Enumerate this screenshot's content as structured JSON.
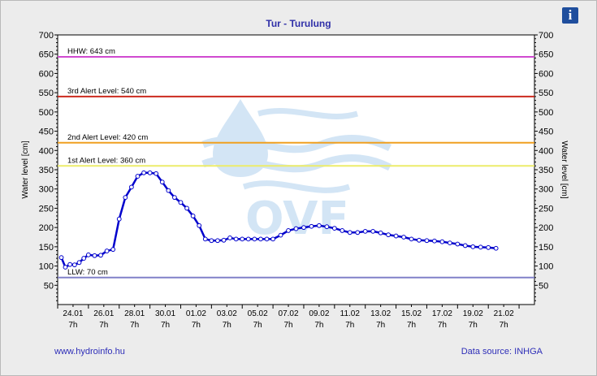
{
  "chart_data": {
    "type": "line",
    "title": "Tur - Turulung",
    "ylabel": "Water level [cm]",
    "ylabel_right": "Water level [cm]",
    "ylim": [
      0,
      700
    ],
    "yticks": [
      50,
      100,
      150,
      200,
      250,
      300,
      350,
      400,
      450,
      500,
      550,
      600,
      650,
      700
    ],
    "xlim": [
      0,
      15.5
    ],
    "x_ticks": [
      {
        "x": 0.5,
        "date": "24.01",
        "time": "7h"
      },
      {
        "x": 1.5,
        "date": "26.01",
        "time": "7h"
      },
      {
        "x": 2.5,
        "date": "28.01",
        "time": "7h"
      },
      {
        "x": 3.5,
        "date": "30.01",
        "time": "7h"
      },
      {
        "x": 4.5,
        "date": "01.02",
        "time": "7h"
      },
      {
        "x": 5.5,
        "date": "03.02",
        "time": "7h"
      },
      {
        "x": 6.5,
        "date": "05.02",
        "time": "7h"
      },
      {
        "x": 7.5,
        "date": "07.02",
        "time": "7h"
      },
      {
        "x": 8.5,
        "date": "09.02",
        "time": "7h"
      },
      {
        "x": 9.5,
        "date": "11.02",
        "time": "7h"
      },
      {
        "x": 10.5,
        "date": "13.02",
        "time": "7h"
      },
      {
        "x": 11.5,
        "date": "15.02",
        "time": "7h"
      },
      {
        "x": 12.5,
        "date": "17.02",
        "time": "7h"
      },
      {
        "x": 13.5,
        "date": "19.02",
        "time": "7h"
      },
      {
        "x": 14.5,
        "date": "21.02",
        "time": "7h"
      }
    ],
    "reference_lines": [
      {
        "label": "HHW: 643 cm",
        "value": 643,
        "color": "#d04ad0"
      },
      {
        "label": "3rd Alert Level: 540 cm",
        "value": 540,
        "color": "#cc2a1e"
      },
      {
        "label": "2nd Alert Level: 420 cm",
        "value": 420,
        "color": "#f0a020"
      },
      {
        "label": "1st Alert Level: 360 cm",
        "value": 360,
        "color": "#ecec6a"
      },
      {
        "label": "LLW: 70 cm",
        "value": 70,
        "color": "#8080c8"
      }
    ],
    "series": [
      {
        "color": "#0000cc",
        "points": [
          [
            0.12,
            122
          ],
          [
            0.25,
            97
          ],
          [
            0.4,
            104
          ],
          [
            0.55,
            103
          ],
          [
            0.7,
            109
          ],
          [
            0.85,
            120
          ],
          [
            1.0,
            129
          ],
          [
            1.2,
            127
          ],
          [
            1.4,
            128
          ],
          [
            1.6,
            139
          ],
          [
            1.8,
            143
          ],
          [
            2.0,
            222
          ],
          [
            2.2,
            278
          ],
          [
            2.4,
            305
          ],
          [
            2.6,
            333
          ],
          [
            2.8,
            342
          ],
          [
            3.0,
            342
          ],
          [
            3.2,
            340
          ],
          [
            3.4,
            318
          ],
          [
            3.6,
            296
          ],
          [
            3.8,
            278
          ],
          [
            4.0,
            265
          ],
          [
            4.2,
            250
          ],
          [
            4.4,
            230
          ],
          [
            4.6,
            205
          ],
          [
            4.8,
            170
          ],
          [
            5.0,
            166
          ],
          [
            5.2,
            166
          ],
          [
            5.4,
            167
          ],
          [
            5.6,
            173
          ],
          [
            5.8,
            170
          ],
          [
            6.0,
            170
          ],
          [
            6.2,
            170
          ],
          [
            6.4,
            170
          ],
          [
            6.6,
            170
          ],
          [
            6.8,
            170
          ],
          [
            7.0,
            170
          ],
          [
            7.25,
            180
          ],
          [
            7.5,
            192
          ],
          [
            7.75,
            197
          ],
          [
            8.0,
            200
          ],
          [
            8.25,
            203
          ],
          [
            8.5,
            205
          ],
          [
            8.75,
            202
          ],
          [
            9.0,
            198
          ],
          [
            9.25,
            192
          ],
          [
            9.5,
            187
          ],
          [
            9.75,
            187
          ],
          [
            10.0,
            190
          ],
          [
            10.25,
            190
          ],
          [
            10.5,
            186
          ],
          [
            10.75,
            181
          ],
          [
            11.0,
            178
          ],
          [
            11.25,
            175
          ],
          [
            11.5,
            170
          ],
          [
            11.75,
            167
          ],
          [
            12.0,
            166
          ],
          [
            12.25,
            165
          ],
          [
            12.5,
            163
          ],
          [
            12.75,
            160
          ],
          [
            13.0,
            157
          ],
          [
            13.25,
            153
          ],
          [
            13.5,
            150
          ],
          [
            13.75,
            149
          ],
          [
            14.0,
            148
          ],
          [
            14.25,
            146
          ]
        ]
      }
    ],
    "grid": false,
    "watermark": "OVF"
  },
  "footer": {
    "website": "www.hydroinfo.hu",
    "source": "Data source: INHGA"
  },
  "info_icon": "info-icon"
}
